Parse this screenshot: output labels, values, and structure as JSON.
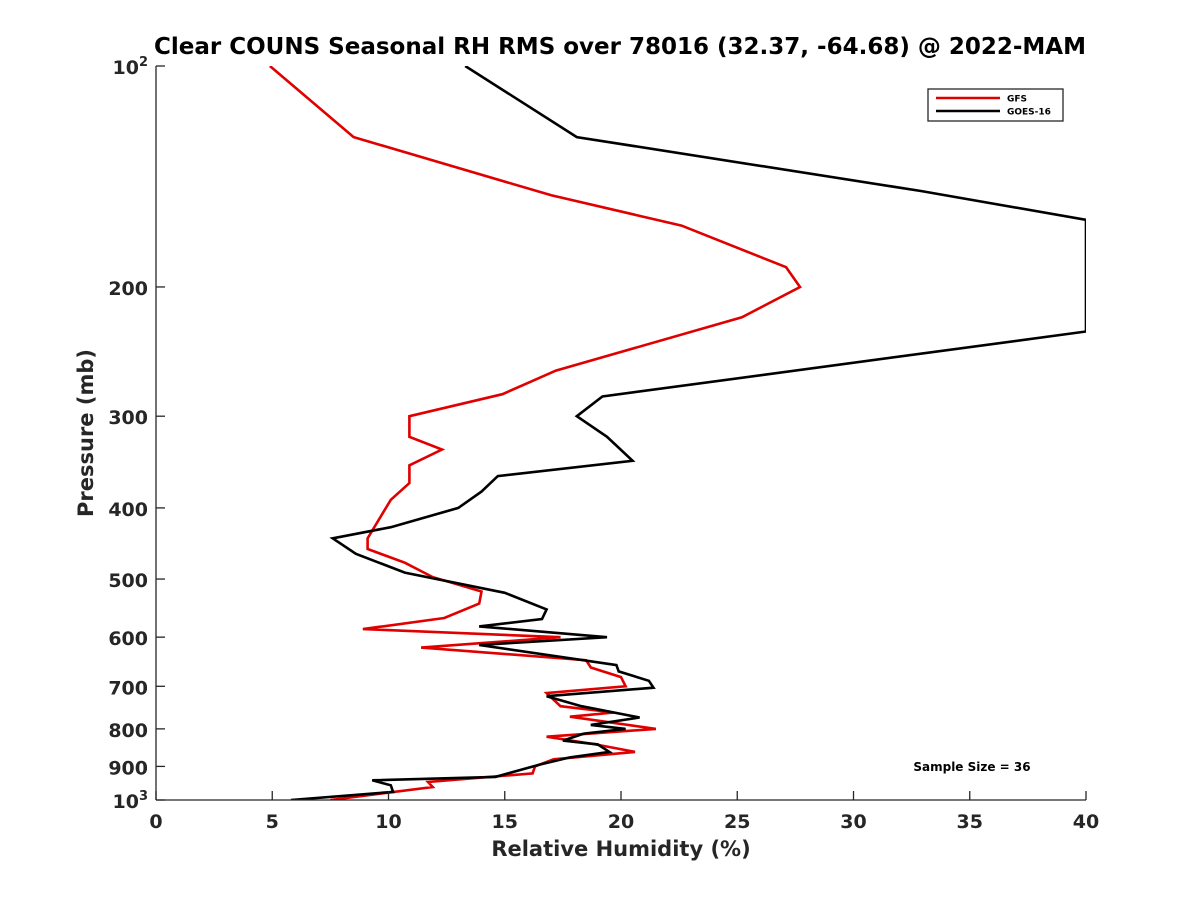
{
  "chart_data": {
    "type": "line",
    "title": "Clear COUNS Seasonal RH RMS over 78016 (32.37, -64.68) @ 2022-MAM",
    "xlabel": "Relative Humidity (%)",
    "ylabel": "Pressure (mb)",
    "xlim": [
      0,
      40
    ],
    "ylim": [
      100,
      1000
    ],
    "yscale": "log",
    "yreversed": true,
    "grid": false,
    "legend_position": "top-right",
    "x_ticks": [
      0,
      5,
      10,
      15,
      20,
      25,
      30,
      35,
      40
    ],
    "x_tick_labels": [
      "0",
      "5",
      "10",
      "15",
      "20",
      "25",
      "30",
      "35",
      "40"
    ],
    "y_ticks": [
      {
        "value": 100,
        "label": "10",
        "sup": "2"
      },
      {
        "value": 200,
        "label": "200",
        "sup": ""
      },
      {
        "value": 300,
        "label": "300",
        "sup": ""
      },
      {
        "value": 400,
        "label": "400",
        "sup": ""
      },
      {
        "value": 500,
        "label": "500",
        "sup": ""
      },
      {
        "value": 600,
        "label": "600",
        "sup": ""
      },
      {
        "value": 700,
        "label": "700",
        "sup": ""
      },
      {
        "value": 800,
        "label": "800",
        "sup": ""
      },
      {
        "value": 900,
        "label": "900",
        "sup": ""
      },
      {
        "value": 1000,
        "label": "10",
        "sup": "3"
      }
    ],
    "annotation": "Sample Size = 36",
    "series": [
      {
        "name": "GFS",
        "color": "#e00000",
        "points": [
          [
            4.9,
            100
          ],
          [
            8.5,
            125
          ],
          [
            17.0,
            150
          ],
          [
            22.6,
            165
          ],
          [
            27.1,
            188
          ],
          [
            27.7,
            200
          ],
          [
            25.2,
            220
          ],
          [
            17.2,
            260
          ],
          [
            14.9,
            280
          ],
          [
            10.9,
            300
          ],
          [
            10.9,
            320
          ],
          [
            12.3,
            333
          ],
          [
            10.9,
            350
          ],
          [
            10.9,
            370
          ],
          [
            10.1,
            390
          ],
          [
            9.1,
            440
          ],
          [
            9.1,
            455
          ],
          [
            10.7,
            475
          ],
          [
            11.9,
            497
          ],
          [
            14.0,
            520
          ],
          [
            13.9,
            540
          ],
          [
            12.4,
            565
          ],
          [
            8.9,
            585
          ],
          [
            17.4,
            600
          ],
          [
            11.4,
            620
          ],
          [
            18.5,
            645
          ],
          [
            18.7,
            660
          ],
          [
            20.0,
            680
          ],
          [
            20.2,
            700
          ],
          [
            16.8,
            715
          ],
          [
            17.4,
            745
          ],
          [
            19.7,
            760
          ],
          [
            17.8,
            770
          ],
          [
            21.5,
            800
          ],
          [
            16.8,
            820
          ],
          [
            18.9,
            840
          ],
          [
            20.6,
            860
          ],
          [
            17.1,
            880
          ],
          [
            16.3,
            900
          ],
          [
            16.2,
            920
          ],
          [
            11.7,
            945
          ],
          [
            11.9,
            960
          ],
          [
            7.5,
            1000
          ]
        ]
      },
      {
        "name": "GOES-16",
        "color": "#000000",
        "points": [
          [
            13.3,
            100
          ],
          [
            18.1,
            125
          ],
          [
            32.9,
            148
          ],
          [
            40.0,
            162
          ],
          [
            40.0,
            230
          ],
          [
            19.2,
            282
          ],
          [
            18.1,
            300
          ],
          [
            19.4,
            320
          ],
          [
            20.5,
            345
          ],
          [
            14.7,
            362
          ],
          [
            14.0,
            380
          ],
          [
            13.0,
            400
          ],
          [
            10.1,
            425
          ],
          [
            7.6,
            440
          ],
          [
            8.6,
            462
          ],
          [
            10.7,
            490
          ],
          [
            15.0,
            522
          ],
          [
            16.8,
            550
          ],
          [
            16.6,
            567
          ],
          [
            13.9,
            580
          ],
          [
            19.4,
            600
          ],
          [
            13.9,
            615
          ],
          [
            19.8,
            655
          ],
          [
            19.9,
            668
          ],
          [
            21.2,
            688
          ],
          [
            21.4,
            703
          ],
          [
            16.8,
            722
          ],
          [
            18.3,
            745
          ],
          [
            20.8,
            772
          ],
          [
            18.7,
            790
          ],
          [
            20.2,
            800
          ],
          [
            18.4,
            812
          ],
          [
            17.5,
            830
          ],
          [
            19.0,
            840
          ],
          [
            19.5,
            860
          ],
          [
            17.8,
            875
          ],
          [
            16.5,
            895
          ],
          [
            14.6,
            930
          ],
          [
            9.3,
            940
          ],
          [
            10.1,
            955
          ],
          [
            10.2,
            975
          ],
          [
            5.8,
            1000
          ]
        ]
      }
    ]
  }
}
